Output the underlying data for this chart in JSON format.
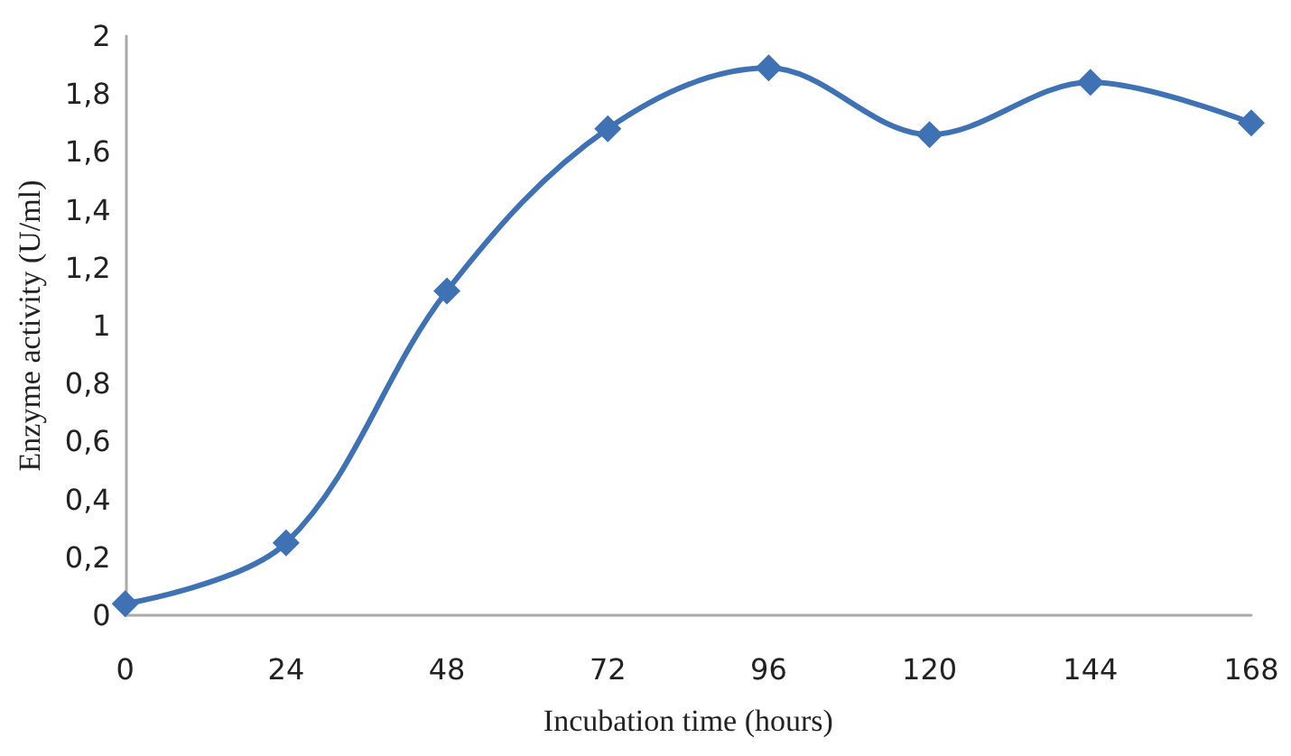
{
  "chart_data": {
    "type": "line",
    "xlabel": "Incubation time (hours)",
    "ylabel": "Enzyme activity (U/ml)",
    "categories": [
      "0",
      "24",
      "48",
      "72",
      "96",
      "120",
      "144",
      "168"
    ],
    "series": [
      {
        "color": "#3f72b5",
        "values": [
          0.04,
          0.25,
          1.12,
          1.68,
          1.89,
          1.66,
          1.84,
          1.7
        ]
      }
    ],
    "ylim": [
      0,
      2
    ],
    "yticks": [
      {
        "value": 0,
        "label": "0"
      },
      {
        "value": 0.2,
        "label": "0,2"
      },
      {
        "value": 0.4,
        "label": "0,4"
      },
      {
        "value": 0.6,
        "label": "0,6"
      },
      {
        "value": 0.8,
        "label": "0,8"
      },
      {
        "value": 1,
        "label": "1"
      },
      {
        "value": 1.2,
        "label": "1,2"
      },
      {
        "value": 1.4,
        "label": "1,4"
      },
      {
        "value": 1.6,
        "label": "1,6"
      },
      {
        "value": 1.8,
        "label": "1,8"
      },
      {
        "value": 2,
        "label": "2"
      }
    ],
    "grid": false,
    "marker": "diamond",
    "line_style": "solid"
  }
}
